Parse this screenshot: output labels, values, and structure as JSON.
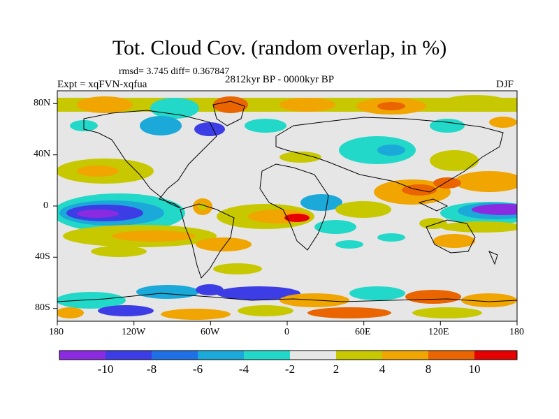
{
  "title": "Tot. Cloud Cov. (random overlap, in %)",
  "stats": "rmsd= 3.745 diff= 0.367847",
  "experiment": "Expt = xqFVN-xqfua",
  "period": "2812kyr BP - 0000kyr BP",
  "season": "DJF",
  "map": {
    "projection": "cylindrical equidistant",
    "lon_range": [
      -180,
      180
    ],
    "lat_range": [
      -90,
      90
    ],
    "x_tick_labels": [
      "180",
      "120W",
      "60W",
      "0",
      "60E",
      "120E",
      "180"
    ],
    "y_tick_labels": [
      "80N",
      "40N",
      "0",
      "40S",
      "80S"
    ],
    "background_color": "#e6e6e6"
  },
  "colorbar": {
    "labels": [
      "-10",
      "-8",
      "-6",
      "-4",
      "-2",
      "2",
      "4",
      "8",
      "10"
    ],
    "colors": [
      "#8a2be2",
      "#3d3de6",
      "#1e70e6",
      "#1aa9d8",
      "#22d8c8",
      "#e6e6e6",
      "#c8c800",
      "#f0a500",
      "#ea6400",
      "#e60000"
    ]
  },
  "anomaly_colors": {
    "strong_negative": "#8a2be2",
    "negative": "#3d3de6",
    "moderate_negative": "#1e70e6",
    "weak_negative": "#1aa9d8",
    "slight_negative": "#22d8c8",
    "neutral": "#e6e6e6",
    "slight_positive": "#c8c800",
    "positive": "#f0a500",
    "strong_positive": "#ea6400",
    "very_strong_positive": "#e60000"
  }
}
